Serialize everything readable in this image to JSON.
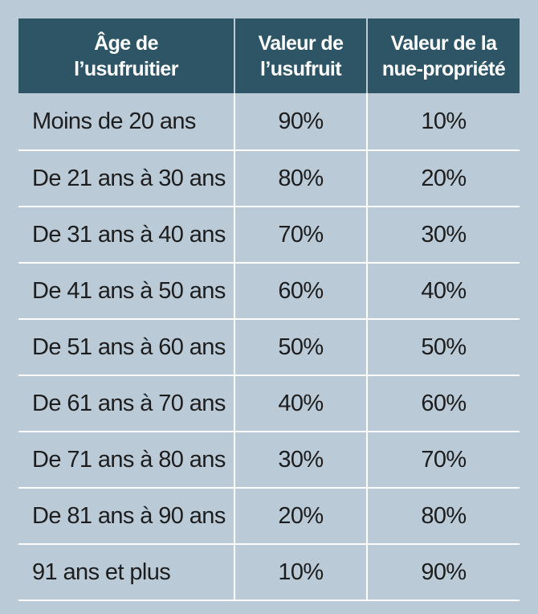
{
  "table": {
    "headers": [
      [
        "Âge de",
        "l’usufruitier"
      ],
      [
        "Valeur de",
        "l’usufruit"
      ],
      [
        "Valeur de la",
        "nue-propriété"
      ]
    ],
    "rows": [
      [
        "Moins de 20 ans",
        "90%",
        "10%"
      ],
      [
        "De 21 ans à 30 ans",
        "80%",
        "20%"
      ],
      [
        "De 31 ans à 40 ans",
        "70%",
        "30%"
      ],
      [
        "De 41 ans à 50 ans",
        "60%",
        "40%"
      ],
      [
        "De 51 ans à 60 ans",
        "50%",
        "50%"
      ],
      [
        "De 61 ans à 70 ans",
        "40%",
        "60%"
      ],
      [
        "De 71 ans à 80 ans",
        "30%",
        "70%"
      ],
      [
        "De 81 ans à 90 ans",
        "20%",
        "80%"
      ],
      [
        "91 ans et plus",
        "10%",
        "90%"
      ]
    ]
  },
  "colors": {
    "background": "#bacbd7",
    "header_background": "#2e5566",
    "header_text": "#ffffff",
    "cell_text": "#1d1d1d",
    "grid_lines": "#ffffff"
  }
}
